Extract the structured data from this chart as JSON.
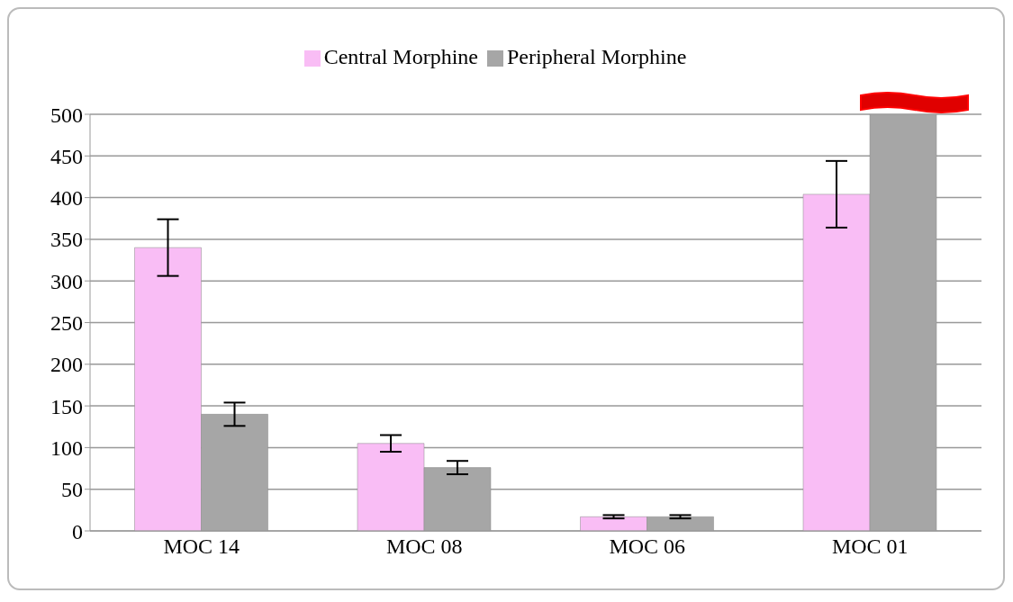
{
  "chart_data": {
    "type": "bar",
    "categories": [
      "MOC 14",
      "MOC 08",
      "MOC 06",
      "MOC 01"
    ],
    "series": [
      {
        "name": "Central Morphine",
        "color": "#f9bdf5",
        "values": [
          340,
          105,
          17,
          404
        ],
        "errors": [
          34,
          10,
          2,
          40
        ]
      },
      {
        "name": "Peripheral Morphine",
        "color": "#a6a6a6",
        "values": [
          140,
          76,
          17,
          500
        ],
        "errors": [
          14,
          8,
          2,
          null
        ]
      }
    ],
    "ylim": [
      0,
      500
    ],
    "yticks": [
      0,
      50,
      100,
      150,
      200,
      250,
      300,
      350,
      400,
      450,
      500
    ],
    "grid": "y",
    "legend": "top"
  }
}
